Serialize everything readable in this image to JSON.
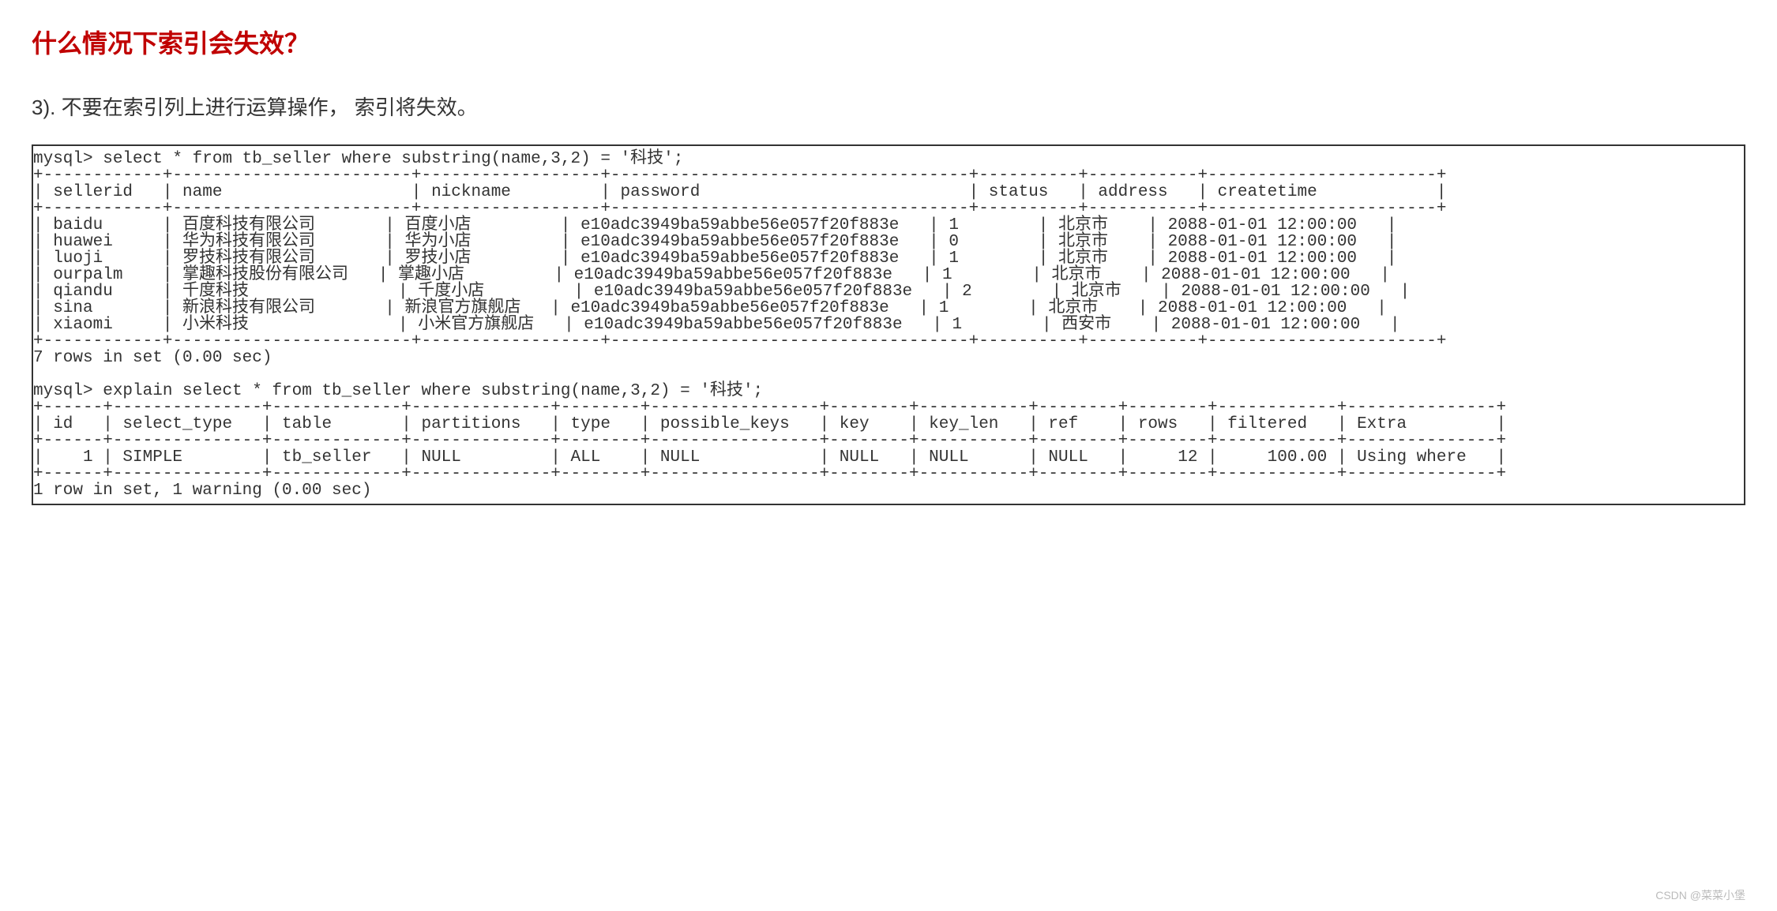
{
  "title_color": "#c00000",
  "title": "什么情况下索引会失效？",
  "subtitle": "3). 不要在索引列上进行运算操作，  索引将失效。",
  "query1_prompt": "mysql> select * from tb_seller where substring(name,3,2) = '科技';",
  "table1": {
    "columns": [
      "sellerid",
      "name",
      "nickname",
      "password",
      "status",
      "address",
      "createtime"
    ],
    "widths": [
      10,
      22,
      16,
      34,
      8,
      9,
      21
    ],
    "rows": [
      [
        "baidu",
        "百度科技有限公司",
        "百度小店",
        "e10adc3949ba59abbe56e057f20f883e",
        "1",
        "北京市",
        "2088-01-01 12:00:00"
      ],
      [
        "huawei",
        "华为科技有限公司",
        "华为小店",
        "e10adc3949ba59abbe56e057f20f883e",
        "0",
        "北京市",
        "2088-01-01 12:00:00"
      ],
      [
        "luoji",
        "罗技科技有限公司",
        "罗技小店",
        "e10adc3949ba59abbe56e057f20f883e",
        "1",
        "北京市",
        "2088-01-01 12:00:00"
      ],
      [
        "ourpalm",
        "掌趣科技股份有限公司",
        "掌趣小店",
        "e10adc3949ba59abbe56e057f20f883e",
        "1",
        "北京市",
        "2088-01-01 12:00:00"
      ],
      [
        "qiandu",
        "千度科技",
        "千度小店",
        "e10adc3949ba59abbe56e057f20f883e",
        "2",
        "北京市",
        "2088-01-01 12:00:00"
      ],
      [
        "sina",
        "新浪科技有限公司",
        "新浪官方旗舰店",
        "e10adc3949ba59abbe56e057f20f883e",
        "1",
        "北京市",
        "2088-01-01 12:00:00"
      ],
      [
        "xiaomi",
        "小米科技",
        "小米官方旗舰店",
        "e10adc3949ba59abbe56e057f20f883e",
        "1",
        "西安市",
        "2088-01-01 12:00:00"
      ]
    ]
  },
  "result1_footer": "7 rows in set (0.00 sec)",
  "query2_prompt": "mysql> explain select * from tb_seller where substring(name,3,2) = '科技';",
  "table2": {
    "columns": [
      "id",
      "select_type",
      "table",
      "partitions",
      "type",
      "possible_keys",
      "key",
      "key_len",
      "ref",
      "rows",
      "filtered",
      "Extra"
    ],
    "widths": [
      4,
      13,
      11,
      12,
      6,
      15,
      6,
      9,
      6,
      6,
      10,
      13
    ],
    "align": [
      "r",
      "l",
      "l",
      "l",
      "l",
      "l",
      "l",
      "l",
      "l",
      "r",
      "r",
      "l"
    ],
    "rows": [
      [
        "1",
        "SIMPLE",
        "tb_seller",
        "NULL",
        "ALL",
        "NULL",
        "NULL",
        "NULL",
        "NULL",
        "12",
        "100.00",
        "Using where"
      ]
    ]
  },
  "result2_footer": "1 row in set, 1 warning (0.00 sec)",
  "watermark": "CSDN @菜菜小堡"
}
